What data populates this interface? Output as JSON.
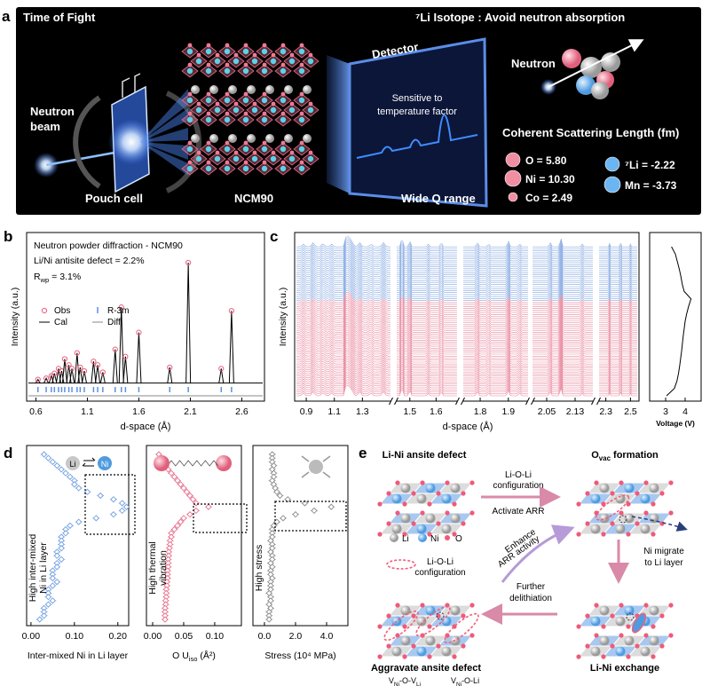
{
  "panel_labels": [
    "a",
    "b",
    "c",
    "d",
    "e"
  ],
  "panel_a": {
    "title": "Time of Fight",
    "isotope_title": "⁷Li Isotope : Avoid neutron absorption",
    "beam_label": [
      "Neutron",
      "beam"
    ],
    "pouch_label": "Pouch cell",
    "crystal_label": "NCM90",
    "detector_label": "Detector",
    "detector_note": [
      "Sensitive to",
      "temperature factor"
    ],
    "q_label": "Wide Q range",
    "neutron_label": "Neutron",
    "scattering_title": "Coherent Scattering Length (fm)",
    "scattering": [
      {
        "text": "O = 5.80",
        "color": "#f28ea2"
      },
      {
        "text": "Ni = 10.30",
        "color": "#f28ea2"
      },
      {
        "text": "Co = 2.49",
        "color": "#f28ea2"
      },
      {
        "text": "⁷Li = -2.22",
        "color": "#6bb6f2"
      },
      {
        "text": "Mn = -3.73",
        "color": "#6bb6f2"
      }
    ]
  },
  "chart_data": [
    {
      "type": "diffraction",
      "texts": [
        "Neutron powder diffraction - NCM90",
        "Li/Ni antisite defect = 2.2%"
      ],
      "rwp": [
        "R",
        "wp",
        " = 3.1%"
      ],
      "xlabel": "d-space (Å)",
      "ylabel": "Intensity (a.u.)",
      "xlim": [
        0.51,
        2.82
      ],
      "ylim": [
        -0.15,
        1.25
      ],
      "xticks": [
        0.6,
        1.1,
        1.6,
        2.1,
        2.6
      ],
      "legend": [
        {
          "name": "Obs",
          "color": "#e8607e"
        },
        {
          "name": "R-3m",
          "color": "#5a8fe0"
        },
        {
          "name": "Cal",
          "color": "#000000"
        },
        {
          "name": "Diff",
          "color": "#888888"
        }
      ],
      "x": [
        0.62,
        0.7,
        0.75,
        0.78,
        0.82,
        0.85,
        0.88,
        0.92,
        0.95,
        1.0,
        1.03,
        1.07,
        1.16,
        1.2,
        1.25,
        1.37,
        1.43,
        1.47,
        1.6,
        1.9,
        2.08,
        2.4,
        2.5
      ],
      "values": [
        0.03,
        0.04,
        0.06,
        0.08,
        0.12,
        0.1,
        0.2,
        0.15,
        0.12,
        0.25,
        0.13,
        0.1,
        0.18,
        0.15,
        0.09,
        0.28,
        0.63,
        0.22,
        0.42,
        0.13,
        1.0,
        0.12,
        0.6
      ]
    },
    {
      "type": "waterfall",
      "xlabel": "d-space (Å)",
      "ylabel": "Intensity (a.u.)",
      "segments": [
        {
          "xlim": [
            0.83,
            1.5
          ],
          "xticks": [
            0.9,
            1.1,
            1.3
          ],
          "peaks": [
            0.88,
            0.95,
            1.02,
            1.08,
            1.19,
            1.22,
            1.28,
            1.36,
            1.45
          ],
          "heights": [
            1,
            1.5,
            1.2,
            1,
            5,
            3,
            1.5,
            1,
            1.5
          ]
        },
        {
          "xlim": [
            1.45,
            1.68
          ],
          "xticks": [
            1.5,
            1.6
          ],
          "peaks": [
            1.47,
            1.5,
            1.57,
            1.62
          ],
          "heights": [
            3,
            2,
            1,
            1.5
          ]
        },
        {
          "xlim": [
            1.74,
            1.97
          ],
          "xticks": [
            1.8,
            1.9
          ],
          "peaks": [
            1.79,
            1.83,
            1.9,
            1.94
          ],
          "heights": [
            1.5,
            1,
            2,
            1
          ]
        },
        {
          "xlim": [
            2.01,
            2.18
          ],
          "xticks": [
            2.05,
            2.13
          ],
          "peaks": [
            2.06,
            2.09,
            2.15
          ],
          "heights": [
            1.5,
            3,
            1
          ]
        },
        {
          "xlim": [
            2.245,
            2.555
          ],
          "xticks": [
            2.3,
            2.5
          ],
          "peaks": [
            2.33,
            2.42,
            2.5
          ],
          "heights": [
            1.2,
            1.5,
            1
          ]
        }
      ],
      "series": [
        {
          "color": "#e8869c",
          "count": 48
        },
        {
          "color": "#86a9e2",
          "count": 28
        }
      ]
    },
    {
      "type": "voltage",
      "xlabel": "Voltage (V)",
      "xlim": [
        2.18,
        4.82
      ],
      "xticks": [
        3,
        4
      ],
      "values": [
        3.05,
        3.45,
        3.58,
        3.66,
        3.72,
        3.77,
        3.82,
        3.86,
        3.9,
        3.95,
        4.0,
        4.08,
        4.18,
        4.3,
        3.95,
        3.85,
        3.78,
        3.7,
        3.6,
        3.5,
        3.3
      ]
    },
    {
      "type": "profile",
      "color": "#6f9fe0",
      "xlabel": [
        "Inter-mixed Ni in Li layer"
      ],
      "ylabel_lines": [
        "High inter-mixed",
        "Ni in Li layer"
      ],
      "inset": [
        "Li",
        "Ni"
      ],
      "xlim": [
        -0.01,
        0.225
      ],
      "xticks": [
        {
          "value": 0,
          "label": "0.00"
        },
        {
          "value": 0.1,
          "label": "0.10"
        },
        {
          "value": 0.2,
          "label": "0.20"
        }
      ],
      "values": [
        0.03,
        0.04,
        0.05,
        0.06,
        0.07,
        0.08,
        0.09,
        0.1,
        0.1,
        0.11,
        0.13,
        0.16,
        0.19,
        0.21,
        0.22,
        0.21,
        0.19,
        0.15,
        0.11,
        0.09,
        0.08,
        0.08,
        0.07,
        0.07,
        0.07,
        0.07,
        0.06,
        0.06,
        0.07,
        0.06,
        0.06,
        0.05,
        0.05,
        0.05,
        0.06,
        0.05,
        0.04,
        0.04,
        0.04,
        0.05,
        0.04,
        0.03,
        0.03,
        0.03,
        0.02
      ]
    },
    {
      "type": "profile",
      "color": "#e8708c",
      "xlabel": [
        "O U",
        "iso",
        " (Å²)"
      ],
      "ylabel_lines": [
        "High thermal",
        "vibration"
      ],
      "xlim": [
        -0.01,
        0.143
      ],
      "xticks": [
        {
          "value": 0,
          "label": "0.00"
        },
        0.05,
        {
          "value": 0.1,
          "label": "0.10"
        }
      ],
      "values": [
        0.01,
        0.012,
        0.015,
        0.02,
        0.025,
        0.03,
        0.035,
        0.04,
        0.045,
        0.05,
        0.055,
        0.06,
        0.065,
        0.07,
        0.09,
        0.07,
        0.06,
        0.05,
        0.045,
        0.04,
        0.035,
        0.03,
        0.03,
        0.028,
        0.028,
        0.027,
        0.026,
        0.026,
        0.025,
        0.025,
        0.025,
        0.024,
        0.024,
        0.024,
        0.023,
        0.023,
        0.022,
        0.022,
        0.022,
        0.021,
        0.021,
        0.02,
        0.02,
        0.02,
        0.02
      ]
    },
    {
      "type": "profile",
      "color": "#8a8a8a",
      "xlabel": [
        "Stress (10⁴ MPa)"
      ],
      "ylabel_lines": [
        "High stress"
      ],
      "xlim": [
        -0.74,
        5.37
      ],
      "xticks": [
        {
          "value": 0,
          "label": "0.0"
        },
        {
          "value": 2,
          "label": "2.0"
        },
        {
          "value": 4,
          "label": "4.0"
        }
      ],
      "values": [
        0.5,
        0.5,
        0.5,
        0.6,
        0.5,
        0.6,
        0.6,
        0.5,
        0.6,
        0.7,
        0.8,
        1.0,
        1.5,
        2.6,
        4.3,
        3.2,
        2.0,
        1.2,
        0.8,
        0.6,
        0.5,
        0.5,
        0.5,
        0.4,
        0.5,
        0.5,
        0.4,
        0.5,
        0.5,
        0.4,
        0.5,
        0.4,
        0.4,
        0.5,
        0.4,
        0.4,
        0.4,
        0.3,
        0.4,
        0.4,
        0.3,
        0.4,
        0.3,
        0.3,
        0.3
      ]
    }
  ],
  "panel_e": {
    "title_tl": "Li-Ni ansite defect",
    "title_tr": [
      "O",
      "vac",
      " formation"
    ],
    "title_bl": "Aggravate ansite defect",
    "title_br": "Li-Ni exchange",
    "config_top": [
      "Li-O-Li",
      "configuration"
    ],
    "activate": "Activate ARR",
    "legend": [
      "Li",
      "Ni",
      "O"
    ],
    "config_legend": [
      "Li-O-Li",
      "configuration"
    ],
    "enhance": [
      "Enhance",
      "ARR activity"
    ],
    "migrate": [
      "Ni migrate",
      "to Li layer"
    ],
    "further": [
      "Further",
      "delithiation"
    ],
    "vacancies": [
      [
        "V",
        "Ni",
        "-O-V",
        "Li"
      ],
      [
        "V",
        "Ni",
        "-O-Li"
      ]
    ]
  }
}
